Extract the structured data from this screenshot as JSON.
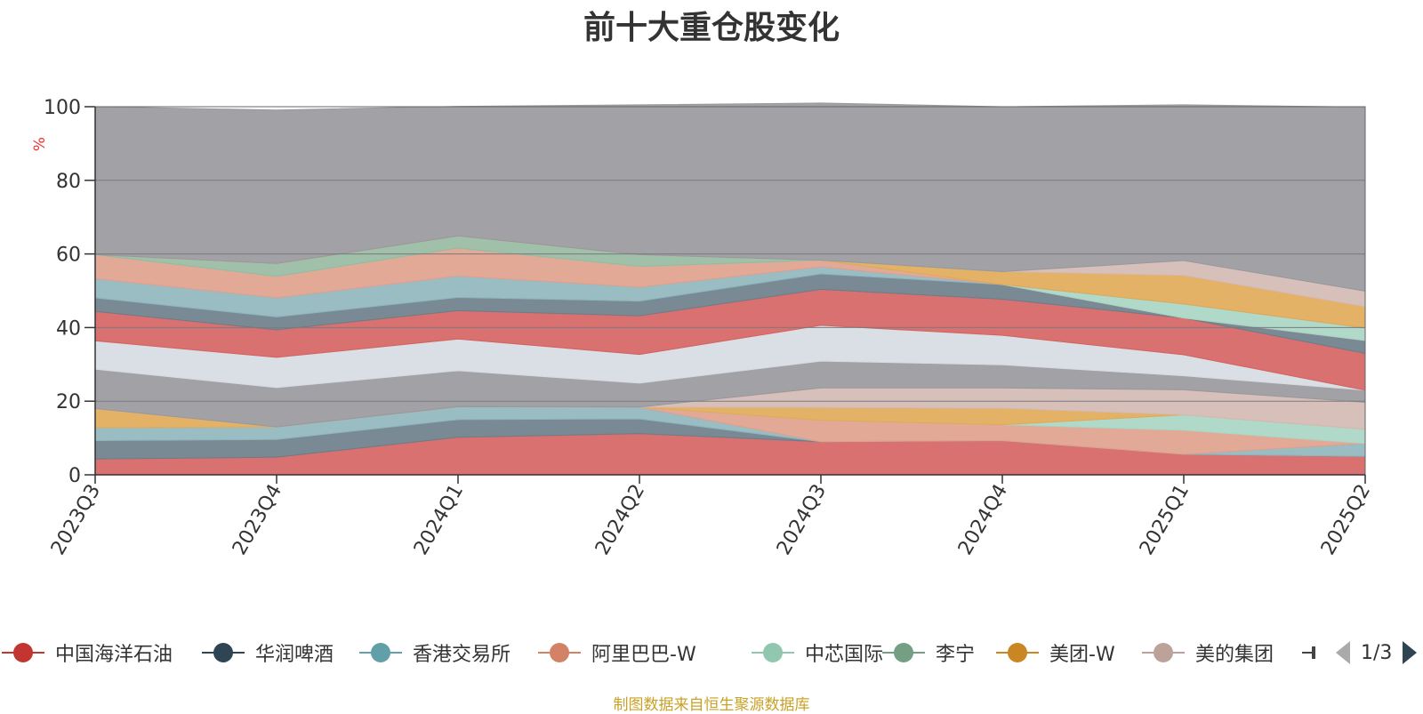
{
  "chart_data": {
    "type": "area",
    "title": "前十大重仓股变化",
    "ylabel": "%",
    "ylim": [
      0,
      100
    ],
    "yticks": [
      "0",
      "20",
      "40",
      "60",
      "80",
      "100"
    ],
    "grid": true,
    "stacked": true,
    "categories": [
      "2023Q3",
      "2023Q4",
      "2024Q1",
      "2024Q2",
      "2024Q3",
      "2024Q4",
      "2025Q1",
      "2025Q2"
    ],
    "layers": [
      {
        "color": "#d4625f",
        "values": [
          4.3,
          4.8,
          10.2,
          11.2,
          9.0,
          9.3,
          5.6,
          5.0
        ]
      },
      {
        "color": "#6c7d89",
        "values": [
          5.0,
          4.8,
          4.8,
          4.0,
          0,
          0,
          0,
          0
        ]
      },
      {
        "color": "#8fb5bd",
        "values": [
          3.5,
          3.4,
          3.5,
          3.2,
          0,
          0,
          0,
          3.5
        ]
      },
      {
        "color": "#e0a08c",
        "values": [
          0,
          0,
          0,
          0,
          5.8,
          4.3,
          6.5,
          0
        ]
      },
      {
        "color": "#a9d5c3",
        "values": [
          0,
          0,
          0,
          0,
          0,
          0,
          4.2,
          3.9
        ]
      },
      {
        "color": "#e0aa57",
        "values": [
          5.2,
          0,
          0,
          0,
          3.5,
          4.5,
          0,
          0
        ]
      },
      {
        "color": "#d4b9b2",
        "values": [
          0,
          0,
          0,
          0,
          5.3,
          5.5,
          6.8,
          7.3
        ]
      },
      {
        "color": "#98989c",
        "values": [
          10.7,
          10.7,
          9.8,
          6.5,
          7.3,
          6.3,
          3.8,
          3.3
        ]
      },
      {
        "color": "#d6dae2",
        "values": [
          7.7,
          8.2,
          8.6,
          7.8,
          9.7,
          8.0,
          5.7,
          0
        ]
      },
      {
        "color": "#d4625f",
        "values": [
          8.0,
          7.5,
          7.7,
          10.5,
          9.8,
          9.8,
          10.0,
          10.0
        ]
      },
      {
        "color": "#6c7d89",
        "values": [
          3.7,
          3.5,
          3.6,
          4.0,
          4.2,
          4.0,
          0,
          3.5
        ]
      },
      {
        "color": "#8fb5bd",
        "values": [
          5.2,
          5.2,
          5.8,
          3.8,
          1.9,
          0,
          0,
          0
        ]
      },
      {
        "color": "#e0a08c",
        "values": [
          6.5,
          5.8,
          7.6,
          5.6,
          1.8,
          0,
          0,
          0
        ]
      },
      {
        "color": "#a9d5c3",
        "values": [
          0,
          0,
          0,
          0,
          0,
          0,
          3.8,
          3.4
        ]
      },
      {
        "color": "#96b9a0",
        "values": [
          0,
          3.5,
          3.3,
          3.2,
          0,
          0,
          0,
          0
        ]
      },
      {
        "color": "#e0aa57",
        "values": [
          0,
          0,
          0,
          0,
          0,
          3.5,
          7.8,
          5.8
        ]
      },
      {
        "color": "#d4b9b2",
        "values": [
          0,
          0,
          0,
          0,
          0,
          0,
          4.0,
          4.2
        ]
      },
      {
        "color": "#98989c",
        "values": [
          40.2,
          41.7,
          35.2,
          40.7,
          42.7,
          44.8,
          42.3,
          50.0
        ]
      }
    ],
    "legend": [
      {
        "name": "中国海洋石油",
        "color": "#c23531"
      },
      {
        "name": "华润啤酒",
        "color": "#2f4554"
      },
      {
        "name": "香港交易所",
        "color": "#61a0a8"
      },
      {
        "name": "阿里巴巴-W",
        "color": "#d48265"
      },
      {
        "name": "中芯国际",
        "color": "#91c7ae"
      },
      {
        "name": "李宁",
        "color": "#749f83"
      },
      {
        "name": "美团-W",
        "color": "#ca8622"
      },
      {
        "name": "美的集团",
        "color": "#bda29a"
      }
    ],
    "legend_page": "1/3"
  },
  "source_note": "制图数据来自恒生聚源数据库"
}
